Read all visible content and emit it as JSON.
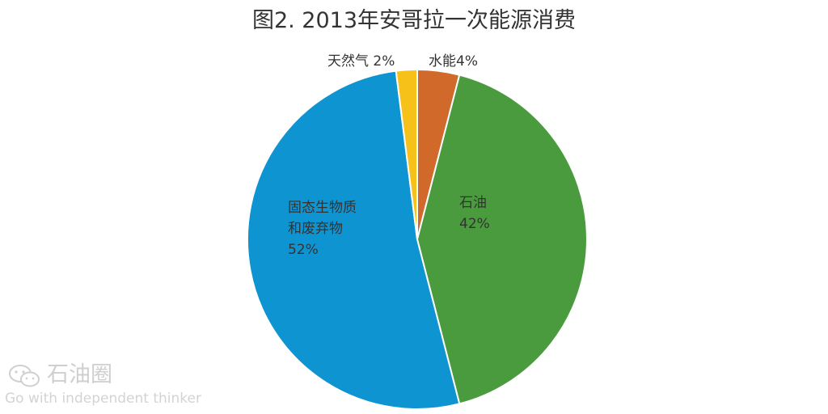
{
  "chart_data": {
    "type": "pie",
    "title": "图2. 2013年安哥拉一次能源消费",
    "slices": [
      {
        "label_lines": [
          "水能4%"
        ],
        "value": 4,
        "color": "#d0692a"
      },
      {
        "label_lines": [
          "石油",
          "42%"
        ],
        "value": 42,
        "color": "#4a9a3e"
      },
      {
        "label_lines": [
          "固态生物质",
          "和废弃物",
          "52%"
        ],
        "value": 52,
        "color": "#0f94d2"
      },
      {
        "label_lines": [
          "天然气 2%"
        ],
        "value": 2,
        "color": "#f6c21a"
      }
    ],
    "legend": "none"
  },
  "watermark": {
    "name": "石油圈",
    "slogan": "Go with independent thinker",
    "icon": "wechat-icon"
  }
}
